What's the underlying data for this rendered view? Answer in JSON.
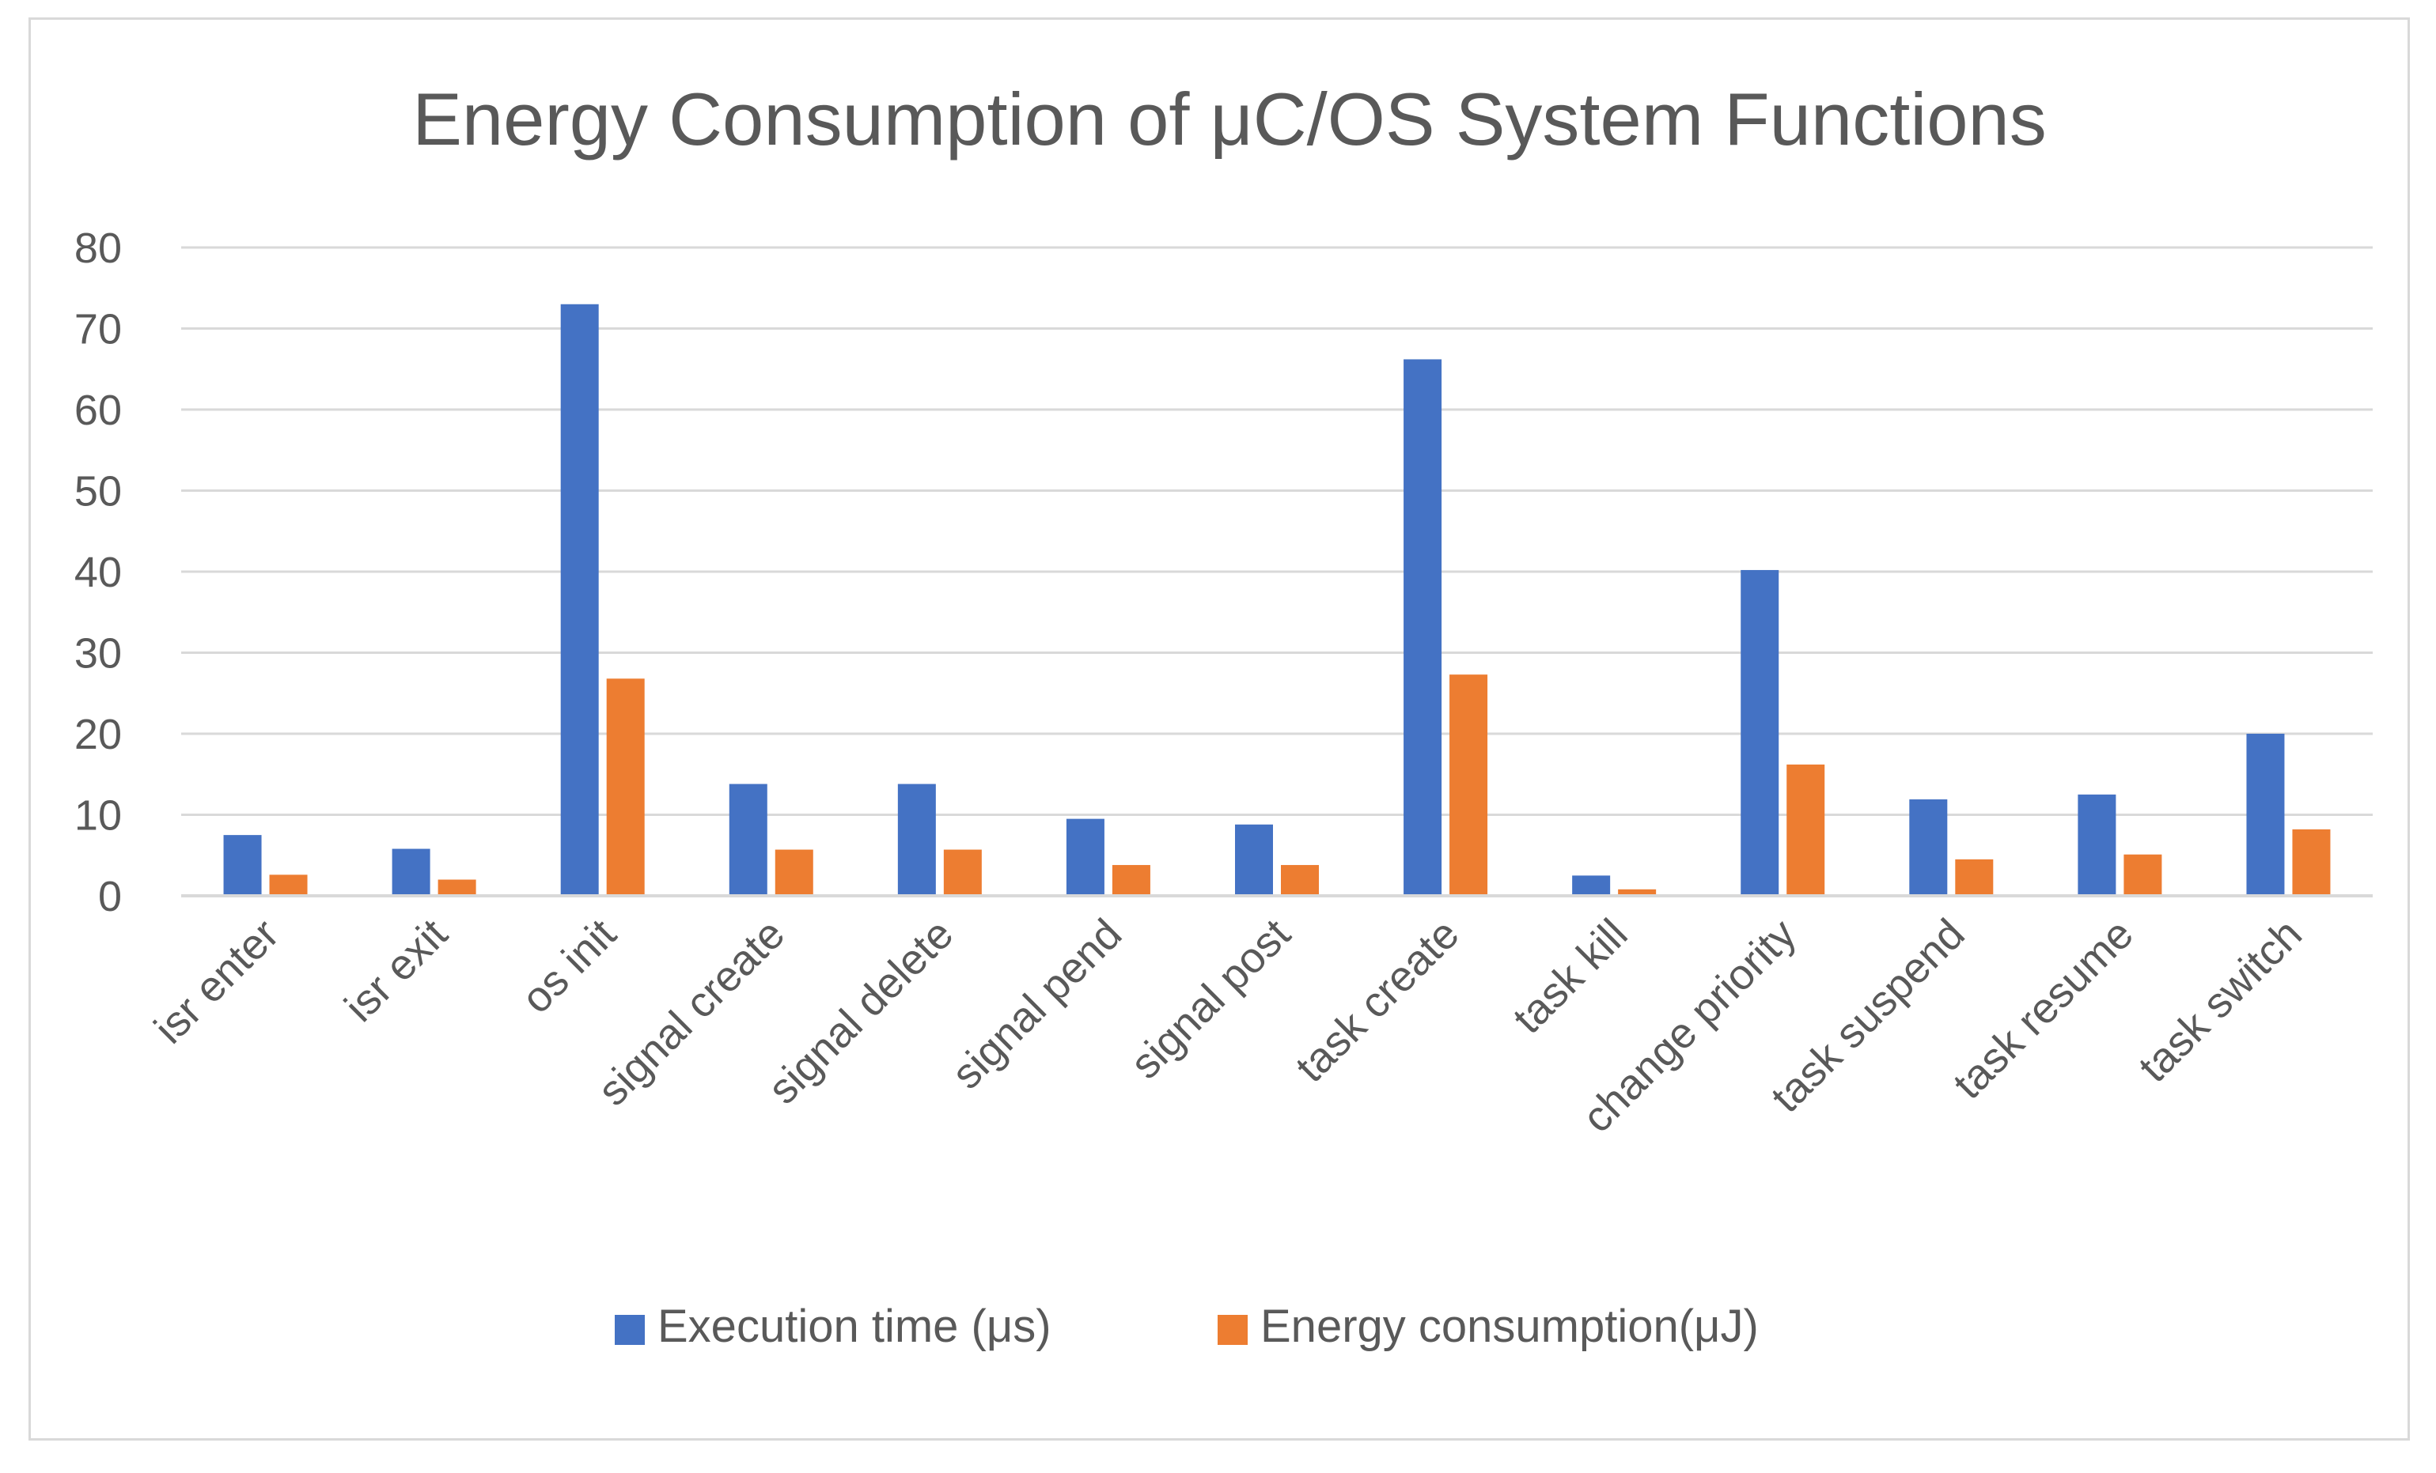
{
  "chart_data": {
    "type": "bar",
    "title": "Energy Consumption of μC/OS System Functions",
    "categories": [
      "isr enter",
      "isr exit",
      "os init",
      "signal create",
      "signal delete",
      "signal pend",
      "signal post",
      "task create",
      "task kill",
      "change priority",
      "task suspend",
      "task resume",
      "task switch"
    ],
    "series": [
      {
        "name": "Execution time (μs)",
        "color": "#4472c4",
        "values": [
          7.5,
          5.8,
          73,
          13.8,
          13.8,
          9.5,
          8.8,
          66.2,
          2.5,
          40.2,
          11.9,
          12.5,
          20
        ]
      },
      {
        "name": "Energy consumption(μJ)",
        "color": "#ed7d31",
        "values": [
          2.6,
          2.0,
          26.8,
          5.7,
          5.7,
          3.8,
          3.8,
          27.3,
          0.8,
          16.2,
          4.5,
          5.1,
          8.2
        ]
      }
    ],
    "yticks": [
      "0",
      "10",
      "20",
      "30",
      "40",
      "50",
      "60",
      "70",
      "80"
    ],
    "ylim": [
      0,
      80
    ],
    "xlabel": "",
    "ylabel": "",
    "grid": true,
    "legend": "bottom"
  }
}
